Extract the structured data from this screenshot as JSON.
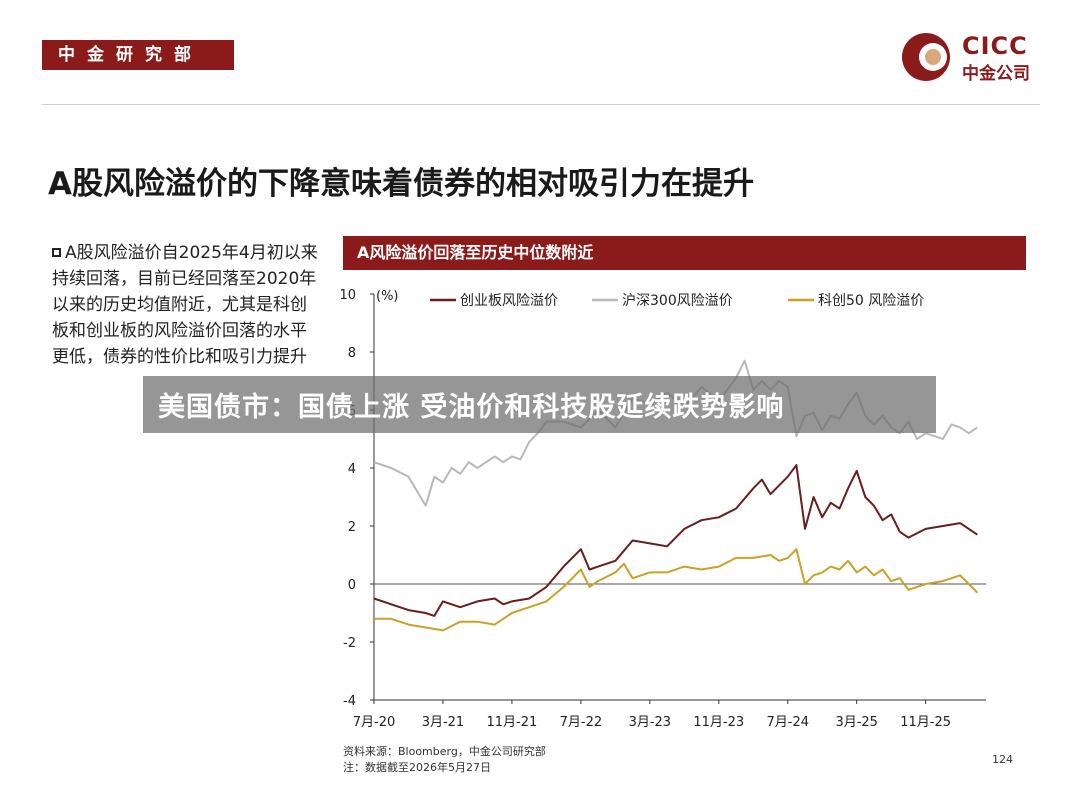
{
  "header": {
    "department": "中金研究部",
    "logo_en": "CICC",
    "logo_cn": "中金公司"
  },
  "title": "A股风险溢价的下降意味着债券的相对吸引力在提升",
  "bullet_text": "A股风险溢价自2025年4月初以来持续回落，目前已经回落至2020年以来的历史均值附近，尤其是科创板和创业板的风险溢价回落的水平更低，债券的性价比和吸引力提升",
  "overlay_headline": "美国债市：国债上涨 受油价和科技股延续跌势影响",
  "footer": {
    "source": "资料来源：Bloomberg，中金公司研究部",
    "note": "注：数据截至2026年5月27日",
    "page_number": "124"
  },
  "colors": {
    "brand": "#8b1a1a",
    "chinext": "#6b1d1d",
    "csi300": "#b8b8b8",
    "star50": "#c9a227"
  },
  "chart_data": {
    "type": "line",
    "title": "A风险溢价回落至历史中位数附近",
    "unit_label": "(%)",
    "ylim": [
      -4,
      10
    ],
    "yticks": [
      "-4",
      "-2",
      "0",
      "2",
      "4",
      "6",
      "8",
      "10"
    ],
    "x_ticks": [
      "7月-20",
      "3月-21",
      "11月-21",
      "7月-22",
      "3月-23",
      "11月-23",
      "7月-24",
      "3月-25",
      "11月-25"
    ],
    "x_tick_index": [
      0,
      8,
      16,
      24,
      32,
      40,
      48,
      56,
      64
    ],
    "x_end_index": 71,
    "legend_position": "top",
    "series": [
      {
        "name": "创业板风险溢价",
        "color": "#6b1d1d",
        "points": [
          [
            0,
            -0.5
          ],
          [
            2,
            -0.7
          ],
          [
            4,
            -0.9
          ],
          [
            6,
            -1.0
          ],
          [
            7,
            -1.1
          ],
          [
            8,
            -0.6
          ],
          [
            10,
            -0.8
          ],
          [
            12,
            -0.6
          ],
          [
            14,
            -0.5
          ],
          [
            15,
            -0.7
          ],
          [
            16,
            -0.6
          ],
          [
            18,
            -0.5
          ],
          [
            20,
            -0.1
          ],
          [
            22,
            0.6
          ],
          [
            24,
            1.2
          ],
          [
            25,
            0.5
          ],
          [
            26,
            0.6
          ],
          [
            28,
            0.8
          ],
          [
            30,
            1.5
          ],
          [
            32,
            1.4
          ],
          [
            34,
            1.3
          ],
          [
            36,
            1.9
          ],
          [
            38,
            2.2
          ],
          [
            40,
            2.3
          ],
          [
            42,
            2.6
          ],
          [
            44,
            3.3
          ],
          [
            45,
            3.6
          ],
          [
            46,
            3.1
          ],
          [
            47,
            3.4
          ],
          [
            48,
            3.7
          ],
          [
            49,
            4.1
          ],
          [
            50,
            1.9
          ],
          [
            51,
            3.0
          ],
          [
            52,
            2.3
          ],
          [
            53,
            2.8
          ],
          [
            54,
            2.6
          ],
          [
            55,
            3.3
          ],
          [
            56,
            3.9
          ],
          [
            57,
            3.0
          ],
          [
            58,
            2.7
          ],
          [
            59,
            2.2
          ],
          [
            60,
            2.4
          ],
          [
            61,
            1.8
          ],
          [
            62,
            1.6
          ],
          [
            64,
            1.9
          ],
          [
            66,
            2.0
          ],
          [
            68,
            2.1
          ],
          [
            69,
            1.9
          ],
          [
            70,
            1.7
          ]
        ]
      },
      {
        "name": "沪深300风险溢价",
        "color": "#b8b8b8",
        "points": [
          [
            0,
            4.2
          ],
          [
            2,
            4.0
          ],
          [
            4,
            3.7
          ],
          [
            6,
            2.7
          ],
          [
            7,
            3.7
          ],
          [
            8,
            3.5
          ],
          [
            9,
            4.0
          ],
          [
            10,
            3.8
          ],
          [
            11,
            4.2
          ],
          [
            12,
            4.0
          ],
          [
            14,
            4.4
          ],
          [
            15,
            4.2
          ],
          [
            16,
            4.4
          ],
          [
            17,
            4.3
          ],
          [
            18,
            4.9
          ],
          [
            19,
            5.2
          ],
          [
            20,
            5.6
          ],
          [
            22,
            5.6
          ],
          [
            24,
            5.4
          ],
          [
            26,
            6.0
          ],
          [
            28,
            5.4
          ],
          [
            30,
            6.4
          ],
          [
            32,
            6.2
          ],
          [
            34,
            6.6
          ],
          [
            36,
            6.1
          ],
          [
            38,
            6.8
          ],
          [
            40,
            6.3
          ],
          [
            42,
            7.1
          ],
          [
            43,
            7.7
          ],
          [
            44,
            6.7
          ],
          [
            45,
            7.0
          ],
          [
            46,
            6.7
          ],
          [
            47,
            7.0
          ],
          [
            48,
            6.8
          ],
          [
            49,
            5.1
          ],
          [
            50,
            5.8
          ],
          [
            51,
            5.9
          ],
          [
            52,
            5.3
          ],
          [
            53,
            5.8
          ],
          [
            54,
            5.7
          ],
          [
            55,
            6.2
          ],
          [
            56,
            6.6
          ],
          [
            57,
            5.8
          ],
          [
            58,
            5.5
          ],
          [
            59,
            5.8
          ],
          [
            60,
            5.4
          ],
          [
            61,
            5.2
          ],
          [
            62,
            5.6
          ],
          [
            63,
            5.0
          ],
          [
            64,
            5.2
          ],
          [
            65,
            5.1
          ],
          [
            66,
            5.0
          ],
          [
            67,
            5.5
          ],
          [
            68,
            5.4
          ],
          [
            69,
            5.2
          ],
          [
            70,
            5.4
          ]
        ]
      },
      {
        "name": "科创50 风险溢价",
        "color": "#c9a227",
        "points": [
          [
            0,
            -1.2
          ],
          [
            2,
            -1.2
          ],
          [
            4,
            -1.4
          ],
          [
            6,
            -1.5
          ],
          [
            8,
            -1.6
          ],
          [
            10,
            -1.3
          ],
          [
            12,
            -1.3
          ],
          [
            14,
            -1.4
          ],
          [
            16,
            -1.0
          ],
          [
            18,
            -0.8
          ],
          [
            20,
            -0.6
          ],
          [
            22,
            -0.1
          ],
          [
            24,
            0.5
          ],
          [
            25,
            -0.1
          ],
          [
            26,
            0.1
          ],
          [
            28,
            0.4
          ],
          [
            29,
            0.7
          ],
          [
            30,
            0.2
          ],
          [
            32,
            0.4
          ],
          [
            34,
            0.4
          ],
          [
            36,
            0.6
          ],
          [
            38,
            0.5
          ],
          [
            40,
            0.6
          ],
          [
            42,
            0.9
          ],
          [
            44,
            0.9
          ],
          [
            46,
            1.0
          ],
          [
            47,
            0.8
          ],
          [
            48,
            0.9
          ],
          [
            49,
            1.2
          ],
          [
            50,
            0.0
          ],
          [
            51,
            0.3
          ],
          [
            52,
            0.4
          ],
          [
            53,
            0.6
          ],
          [
            54,
            0.5
          ],
          [
            55,
            0.8
          ],
          [
            56,
            0.4
          ],
          [
            57,
            0.6
          ],
          [
            58,
            0.3
          ],
          [
            59,
            0.5
          ],
          [
            60,
            0.1
          ],
          [
            61,
            0.2
          ],
          [
            62,
            -0.2
          ],
          [
            64,
            0.0
          ],
          [
            66,
            0.1
          ],
          [
            68,
            0.3
          ],
          [
            69,
            0.0
          ],
          [
            70,
            -0.3
          ]
        ]
      }
    ]
  }
}
